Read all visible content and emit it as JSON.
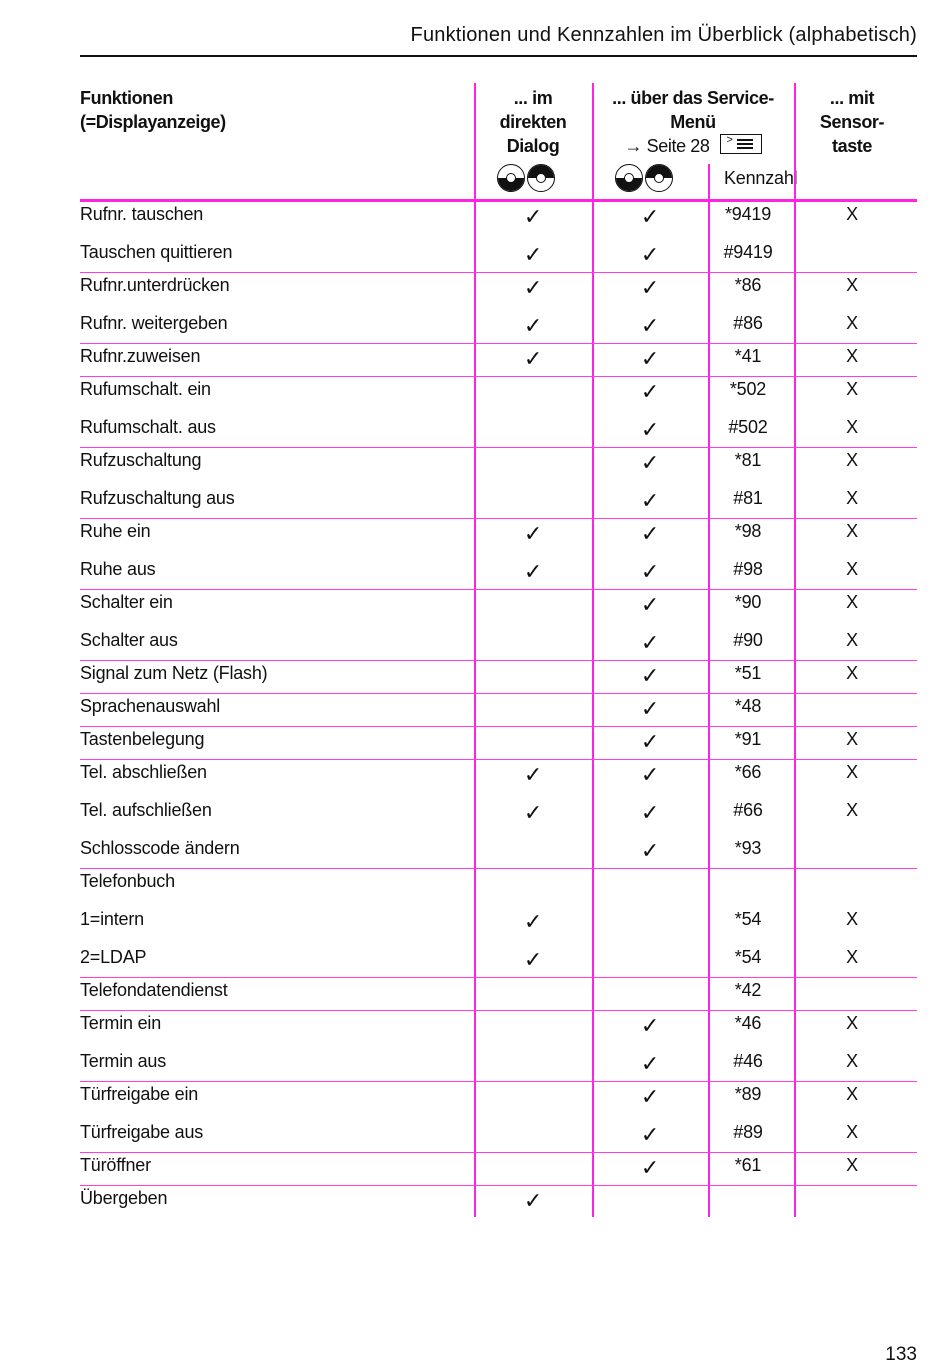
{
  "running_head": "Funktionen und Kennzahlen im Überblick (alphabetisch)",
  "header": {
    "functions": [
      "Funktionen",
      "(=Displayanzeige)"
    ],
    "direct": [
      "... im",
      "direkten",
      "Dialog"
    ],
    "service": "... über das Service-Menü",
    "service_ref": "→ Seite 28",
    "code": "Kennzahl",
    "sensor": [
      "... mit",
      "Sensor-",
      "taste"
    ]
  },
  "check_symbol": "✓",
  "accent_color": "#ff22e8",
  "groups": [
    {
      "rows": [
        {
          "name": "Rufnr. tauschen",
          "direct": true,
          "service": true,
          "code": "*9419",
          "sensor": "X"
        },
        {
          "name": "Tauschen quittieren",
          "direct": true,
          "service": true,
          "code": "#9419",
          "sensor": ""
        }
      ]
    },
    {
      "rows": [
        {
          "name": "Rufnr.unterdrücken",
          "direct": true,
          "service": true,
          "code": "*86",
          "sensor": "X"
        },
        {
          "name": "Rufnr. weitergeben",
          "direct": true,
          "service": true,
          "code": "#86",
          "sensor": "X"
        }
      ]
    },
    {
      "rows": [
        {
          "name": "Rufnr.zuweisen",
          "direct": true,
          "service": true,
          "code": "*41",
          "sensor": "X"
        }
      ]
    },
    {
      "rows": [
        {
          "name": "Rufumschalt. ein",
          "direct": false,
          "service": true,
          "code": "*502",
          "sensor": "X"
        },
        {
          "name": "Rufumschalt. aus",
          "direct": false,
          "service": true,
          "code": "#502",
          "sensor": "X"
        }
      ]
    },
    {
      "rows": [
        {
          "name": "Rufzuschaltung",
          "direct": false,
          "service": true,
          "code": "*81",
          "sensor": "X"
        },
        {
          "name": "Rufzuschaltung aus",
          "direct": false,
          "service": true,
          "code": "#81",
          "sensor": "X"
        }
      ]
    },
    {
      "rows": [
        {
          "name": "Ruhe ein",
          "direct": true,
          "service": true,
          "code": "*98",
          "sensor": "X"
        },
        {
          "name": "Ruhe aus",
          "direct": true,
          "service": true,
          "code": "#98",
          "sensor": "X"
        }
      ]
    },
    {
      "rows": [
        {
          "name": "Schalter ein",
          "direct": false,
          "service": true,
          "code": "*90",
          "sensor": "X"
        },
        {
          "name": "Schalter aus",
          "direct": false,
          "service": true,
          "code": "#90",
          "sensor": "X"
        }
      ]
    },
    {
      "rows": [
        {
          "name": "Signal zum Netz (Flash)",
          "direct": false,
          "service": true,
          "code": "*51",
          "sensor": "X"
        }
      ]
    },
    {
      "rows": [
        {
          "name": "Sprachenauswahl",
          "direct": false,
          "service": true,
          "code": "*48",
          "sensor": ""
        }
      ]
    },
    {
      "rows": [
        {
          "name": "Tastenbelegung",
          "direct": false,
          "service": true,
          "code": "*91",
          "sensor": "X"
        }
      ]
    },
    {
      "rows": [
        {
          "name": "Tel. abschließen",
          "direct": true,
          "service": true,
          "code": "*66",
          "sensor": "X"
        },
        {
          "name": "Tel. aufschließen",
          "direct": true,
          "service": true,
          "code": "#66",
          "sensor": "X"
        },
        {
          "name": "Schlosscode ändern",
          "direct": false,
          "service": true,
          "code": "*93",
          "sensor": ""
        }
      ]
    },
    {
      "rows": [
        {
          "name": "Telefonbuch",
          "direct": false,
          "service": false,
          "code": "",
          "sensor": ""
        },
        {
          "name": "1=intern",
          "direct": true,
          "service": false,
          "code": "*54",
          "sensor": "X"
        },
        {
          "name": "2=LDAP",
          "direct": true,
          "service": false,
          "code": "*54",
          "sensor": "X"
        }
      ]
    },
    {
      "rows": [
        {
          "name": "Telefondatendienst",
          "direct": false,
          "service": false,
          "code": "*42",
          "sensor": ""
        }
      ]
    },
    {
      "rows": [
        {
          "name": "Termin ein",
          "direct": false,
          "service": true,
          "code": "*46",
          "sensor": "X"
        },
        {
          "name": "Termin aus",
          "direct": false,
          "service": true,
          "code": "#46",
          "sensor": "X"
        }
      ]
    },
    {
      "rows": [
        {
          "name": "Türfreigabe ein",
          "direct": false,
          "service": true,
          "code": "*89",
          "sensor": "X"
        },
        {
          "name": "Türfreigabe aus",
          "direct": false,
          "service": true,
          "code": "#89",
          "sensor": "X"
        }
      ]
    },
    {
      "rows": [
        {
          "name": "Türöffner",
          "direct": false,
          "service": true,
          "code": "*61",
          "sensor": "X"
        }
      ]
    },
    {
      "rows": [
        {
          "name": "Übergeben",
          "direct": true,
          "service": false,
          "code": "",
          "sensor": ""
        }
      ]
    }
  ],
  "page_number": "133"
}
